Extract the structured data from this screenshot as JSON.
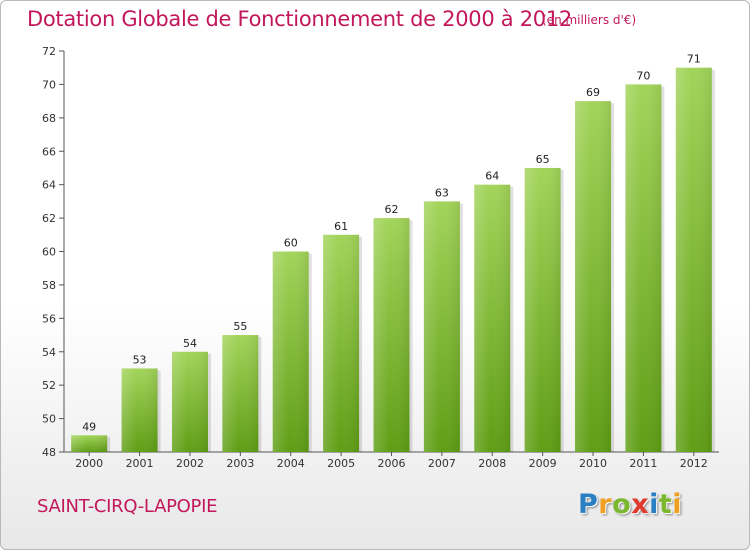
{
  "title": "Dotation Globale de Fonctionnement de 2000 à 2012",
  "subtitle": "(en milliers d'€)",
  "commune": "SAINT-CIRQ-LAPOPIE",
  "logo": {
    "letters": [
      "P",
      "r",
      "o",
      "x",
      "i",
      "t",
      "i"
    ],
    "colors": [
      "#2a7fc4",
      "#f0a020",
      "#7cb82f",
      "#e03a2c",
      "#2a7fc4",
      "#7cb82f",
      "#f0a020"
    ]
  },
  "colors": {
    "bar_top": "#a2d45a",
    "bar_bottom": "#5f9e15",
    "title": "#c2185b"
  },
  "chart_data": {
    "type": "bar",
    "title": "Dotation Globale de Fonctionnement de 2000 à 2012",
    "subtitle": "(en milliers d'€)",
    "categories": [
      "2000",
      "2001",
      "2002",
      "2003",
      "2004",
      "2005",
      "2006",
      "2007",
      "2008",
      "2009",
      "2010",
      "2011",
      "2012"
    ],
    "values": [
      49,
      53,
      54,
      55,
      60,
      61,
      62,
      63,
      64,
      65,
      69,
      70,
      71
    ],
    "ylim": [
      48,
      72
    ],
    "yticks": [
      48,
      50,
      52,
      54,
      56,
      58,
      60,
      62,
      64,
      66,
      68,
      70,
      72
    ],
    "grid": false,
    "xlabel": "",
    "ylabel": ""
  }
}
